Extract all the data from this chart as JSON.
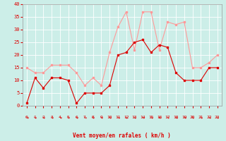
{
  "x": [
    0,
    1,
    2,
    3,
    4,
    5,
    6,
    7,
    8,
    9,
    10,
    11,
    12,
    13,
    14,
    15,
    16,
    17,
    18,
    19,
    20,
    21,
    22,
    23
  ],
  "vent_moyen": [
    1,
    11,
    7,
    11,
    11,
    10,
    1,
    5,
    5,
    5,
    8,
    20,
    21,
    25,
    26,
    21,
    24,
    23,
    13,
    10,
    10,
    10,
    15,
    15
  ],
  "rafales": [
    15,
    13,
    13,
    16,
    16,
    16,
    13,
    8,
    11,
    8,
    21,
    31,
    37,
    22,
    37,
    37,
    22,
    33,
    32,
    33,
    15,
    15,
    17,
    20
  ],
  "bg_color": "#cceee8",
  "grid_color": "#ffffff",
  "line_color_moyen": "#dd0000",
  "line_color_rafales": "#ff9999",
  "xlabel": "Vent moyen/en rafales ( km/h )",
  "xlabel_color": "#dd0000",
  "tick_color": "#dd0000",
  "ylim": [
    0,
    40
  ],
  "xlim": [
    -0.5,
    23.5
  ],
  "yticks": [
    0,
    5,
    10,
    15,
    20,
    25,
    30,
    35,
    40
  ],
  "xticks": [
    0,
    1,
    2,
    3,
    4,
    5,
    6,
    7,
    8,
    9,
    10,
    11,
    12,
    13,
    14,
    15,
    16,
    17,
    18,
    19,
    20,
    21,
    22,
    23
  ]
}
